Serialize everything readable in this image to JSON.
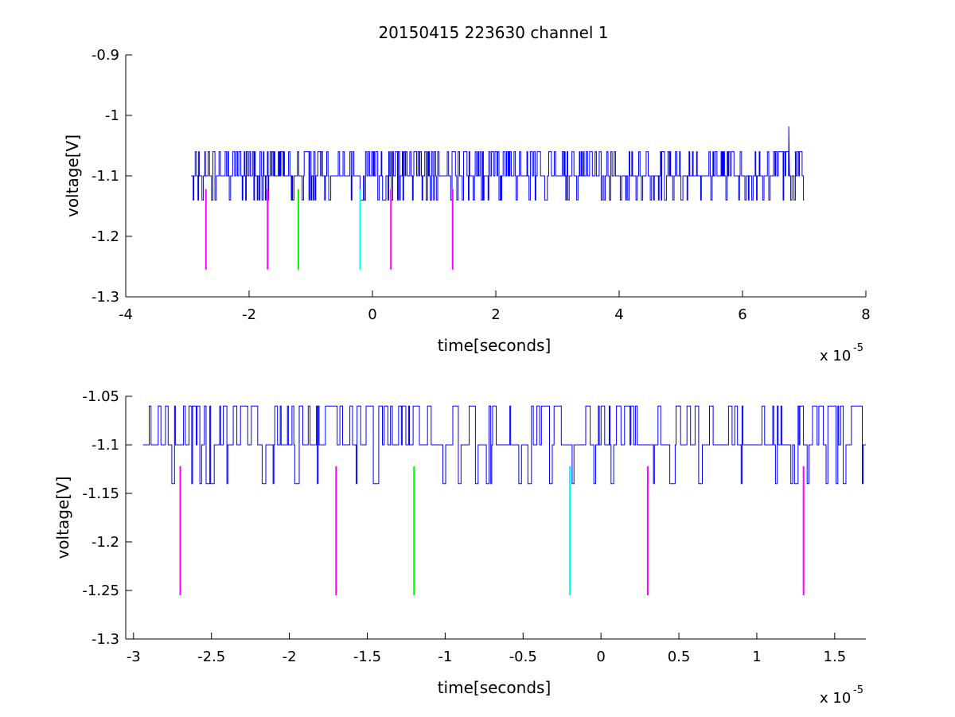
{
  "figure": {
    "title": "20150415 223630 channel 1"
  },
  "colors": {
    "signal": "#0000ff",
    "magenta": "#ff00ff",
    "green": "#00ff00",
    "cyan": "#00ffff"
  },
  "chart_data": [
    {
      "type": "line",
      "title": "20150415 223630 channel 1",
      "xlabel": "time[seconds]",
      "ylabel": "voltage[V]",
      "x_multiplier_label": "x 10",
      "x_multiplier_exp": "-5",
      "xlim": [
        -4,
        8
      ],
      "ylim": [
        -1.3,
        -0.9
      ],
      "xticks": [
        -4,
        -2,
        0,
        2,
        4,
        6,
        8
      ],
      "xtick_labels": [
        "-4",
        "-2",
        "0",
        "2",
        "4",
        "6",
        "8"
      ],
      "yticks": [
        -1.3,
        -1.2,
        -1.1,
        -1.0,
        -0.9
      ],
      "ytick_labels": [
        "-1.3",
        "-1.2",
        "-1.1",
        "-1",
        "-0.9"
      ],
      "grid": false,
      "signal": {
        "x_start": -2.94,
        "x_end": 7.0,
        "baseline": -1.1,
        "levels": [
          -1.06,
          -1.1,
          -1.14
        ],
        "spike": {
          "x": 6.75,
          "y": -1.018
        }
      },
      "markers": [
        {
          "x": -2.7,
          "y_top": -1.122,
          "y_bottom": -1.255,
          "color": "magenta"
        },
        {
          "x": -1.7,
          "y_top": -1.122,
          "y_bottom": -1.255,
          "color": "magenta"
        },
        {
          "x": -1.2,
          "y_top": -1.122,
          "y_bottom": -1.255,
          "color": "green"
        },
        {
          "x": -0.2,
          "y_top": -1.122,
          "y_bottom": -1.255,
          "color": "cyan"
        },
        {
          "x": 0.3,
          "y_top": -1.122,
          "y_bottom": -1.255,
          "color": "magenta"
        },
        {
          "x": 1.3,
          "y_top": -1.122,
          "y_bottom": -1.255,
          "color": "magenta"
        }
      ]
    },
    {
      "type": "line",
      "title": "",
      "xlabel": "time[seconds]",
      "ylabel": "voltage[V]",
      "x_multiplier_label": "x 10",
      "x_multiplier_exp": "-5",
      "xlim": [
        -3.05,
        1.7
      ],
      "ylim": [
        -1.3,
        -1.05
      ],
      "xticks": [
        -3,
        -2.5,
        -2,
        -1.5,
        -1,
        -0.5,
        0,
        0.5,
        1,
        1.5
      ],
      "xtick_labels": [
        "-3",
        "-2.5",
        "-2",
        "-1.5",
        "-1",
        "-0.5",
        "0",
        "0.5",
        "1",
        "1.5"
      ],
      "yticks": [
        -1.3,
        -1.25,
        -1.2,
        -1.15,
        -1.1,
        -1.05
      ],
      "ytick_labels": [
        "-1.3",
        "-1.25",
        "-1.2",
        "-1.15",
        "-1.1",
        "-1.05"
      ],
      "grid": false,
      "signal": {
        "x_start": -2.94,
        "x_end": 1.7,
        "baseline": -1.1,
        "levels": [
          -1.06,
          -1.1,
          -1.14
        ]
      },
      "markers": [
        {
          "x": -2.7,
          "y_top": -1.122,
          "y_bottom": -1.255,
          "color": "magenta"
        },
        {
          "x": -1.7,
          "y_top": -1.122,
          "y_bottom": -1.255,
          "color": "magenta"
        },
        {
          "x": -1.2,
          "y_top": -1.122,
          "y_bottom": -1.255,
          "color": "green"
        },
        {
          "x": -0.2,
          "y_top": -1.122,
          "y_bottom": -1.255,
          "color": "cyan"
        },
        {
          "x": 0.3,
          "y_top": -1.122,
          "y_bottom": -1.255,
          "color": "magenta"
        },
        {
          "x": 1.3,
          "y_top": -1.122,
          "y_bottom": -1.255,
          "color": "magenta"
        }
      ]
    }
  ]
}
